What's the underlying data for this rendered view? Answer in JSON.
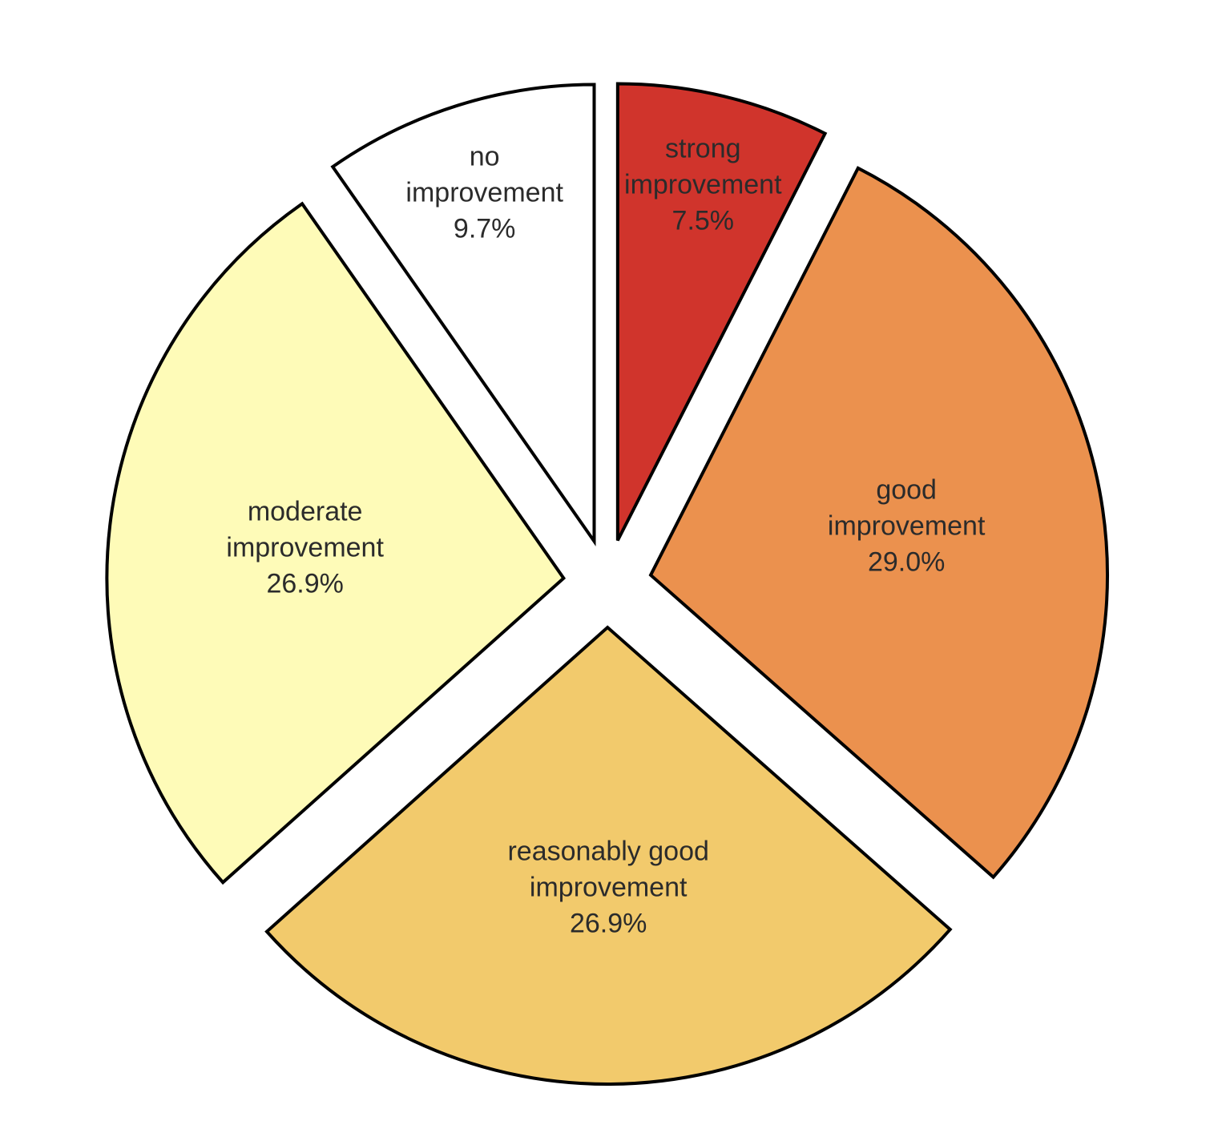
{
  "chart_data": {
    "type": "pie",
    "categories": [
      "strong improvement",
      "good improvement",
      "reasonably good improvement",
      "moderate improvement",
      "no improvement"
    ],
    "values": [
      7.5,
      29.0,
      26.9,
      26.9,
      9.7
    ],
    "value_labels": [
      "7.5%",
      "29.0%",
      "26.9%",
      "26.9%",
      "9.7%"
    ],
    "colors": [
      "#d0342c",
      "#eb914e",
      "#f2ca6c",
      "#fefbb8",
      "#ffffff"
    ]
  }
}
